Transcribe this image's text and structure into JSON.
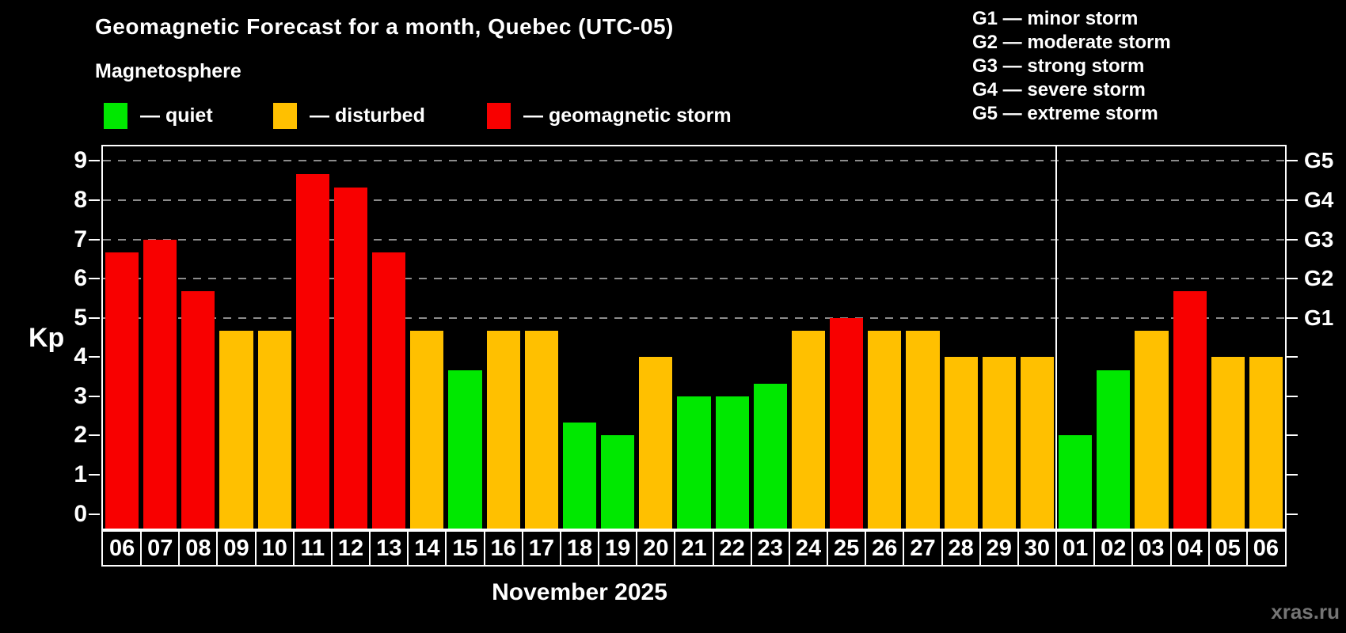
{
  "page": {
    "title": "Geomagnetic Forecast for a month, Quebec (UTC-05)",
    "subtitle": "Magnetosphere",
    "kp_axis_label": "Kp",
    "month_label": "November 2025",
    "watermark": "xras.ru"
  },
  "legend": {
    "items": [
      {
        "name": "quiet",
        "label": "— quiet",
        "color": "#00e800",
        "x": 0
      },
      {
        "name": "disturbed",
        "label": "— disturbed",
        "color": "#ffc000",
        "x": 214
      },
      {
        "name": "storm",
        "label": "— geomagnetic storm",
        "color": "#f80000",
        "x": 484
      }
    ]
  },
  "g_legend": {
    "items": [
      {
        "text": "G1 — minor storm"
      },
      {
        "text": "G2 — moderate storm"
      },
      {
        "text": "G3 — strong storm"
      },
      {
        "text": "G4 — severe storm"
      },
      {
        "text": "G5 — extreme storm"
      }
    ]
  },
  "chart_data": {
    "type": "bar",
    "title": "Geomagnetic Forecast for a month, Quebec (UTC-05)",
    "xlabel": "November 2025",
    "ylabel": "Kp",
    "ylim": [
      -0.37,
      9.37
    ],
    "yticks": [
      0,
      1,
      2,
      3,
      4,
      5,
      6,
      7,
      8,
      9
    ],
    "gridlines_at_kp": [
      5,
      6,
      7,
      8,
      9
    ],
    "grid_color": "#8c8c8c",
    "right_axis": [
      {
        "label": "G1",
        "kp": 5
      },
      {
        "label": "G2",
        "kp": 6
      },
      {
        "label": "G3",
        "kp": 7
      },
      {
        "label": "G4",
        "kp": 8
      },
      {
        "label": "G5",
        "kp": 9
      }
    ],
    "status_colors": {
      "quiet": "#00e800",
      "disturbed": "#ffc000",
      "storm": "#f80000"
    },
    "month_divider_after_index": 24,
    "bars": [
      {
        "date": "06",
        "kp": 6.67,
        "status": "storm"
      },
      {
        "date": "07",
        "kp": 7.0,
        "status": "storm"
      },
      {
        "date": "08",
        "kp": 5.67,
        "status": "storm"
      },
      {
        "date": "09",
        "kp": 4.67,
        "status": "disturbed"
      },
      {
        "date": "10",
        "kp": 4.67,
        "status": "disturbed"
      },
      {
        "date": "11",
        "kp": 8.67,
        "status": "storm"
      },
      {
        "date": "12",
        "kp": 8.33,
        "status": "storm"
      },
      {
        "date": "13",
        "kp": 6.67,
        "status": "storm"
      },
      {
        "date": "14",
        "kp": 4.67,
        "status": "disturbed"
      },
      {
        "date": "15",
        "kp": 3.67,
        "status": "quiet"
      },
      {
        "date": "16",
        "kp": 4.67,
        "status": "disturbed"
      },
      {
        "date": "17",
        "kp": 4.67,
        "status": "disturbed"
      },
      {
        "date": "18",
        "kp": 2.33,
        "status": "quiet"
      },
      {
        "date": "19",
        "kp": 2.0,
        "status": "quiet"
      },
      {
        "date": "20",
        "kp": 4.0,
        "status": "disturbed"
      },
      {
        "date": "21",
        "kp": 3.0,
        "status": "quiet"
      },
      {
        "date": "22",
        "kp": 3.0,
        "status": "quiet"
      },
      {
        "date": "23",
        "kp": 3.33,
        "status": "quiet"
      },
      {
        "date": "24",
        "kp": 4.67,
        "status": "disturbed"
      },
      {
        "date": "25",
        "kp": 5.0,
        "status": "storm"
      },
      {
        "date": "26",
        "kp": 4.67,
        "status": "disturbed"
      },
      {
        "date": "27",
        "kp": 4.67,
        "status": "disturbed"
      },
      {
        "date": "28",
        "kp": 4.0,
        "status": "disturbed"
      },
      {
        "date": "29",
        "kp": 4.0,
        "status": "disturbed"
      },
      {
        "date": "30",
        "kp": 4.0,
        "status": "disturbed"
      },
      {
        "date": "01",
        "kp": 2.0,
        "status": "quiet"
      },
      {
        "date": "02",
        "kp": 3.67,
        "status": "quiet"
      },
      {
        "date": "03",
        "kp": 4.67,
        "status": "disturbed"
      },
      {
        "date": "04",
        "kp": 5.67,
        "status": "storm"
      },
      {
        "date": "05",
        "kp": 4.0,
        "status": "disturbed"
      },
      {
        "date": "06",
        "kp": 4.0,
        "status": "disturbed"
      }
    ]
  }
}
